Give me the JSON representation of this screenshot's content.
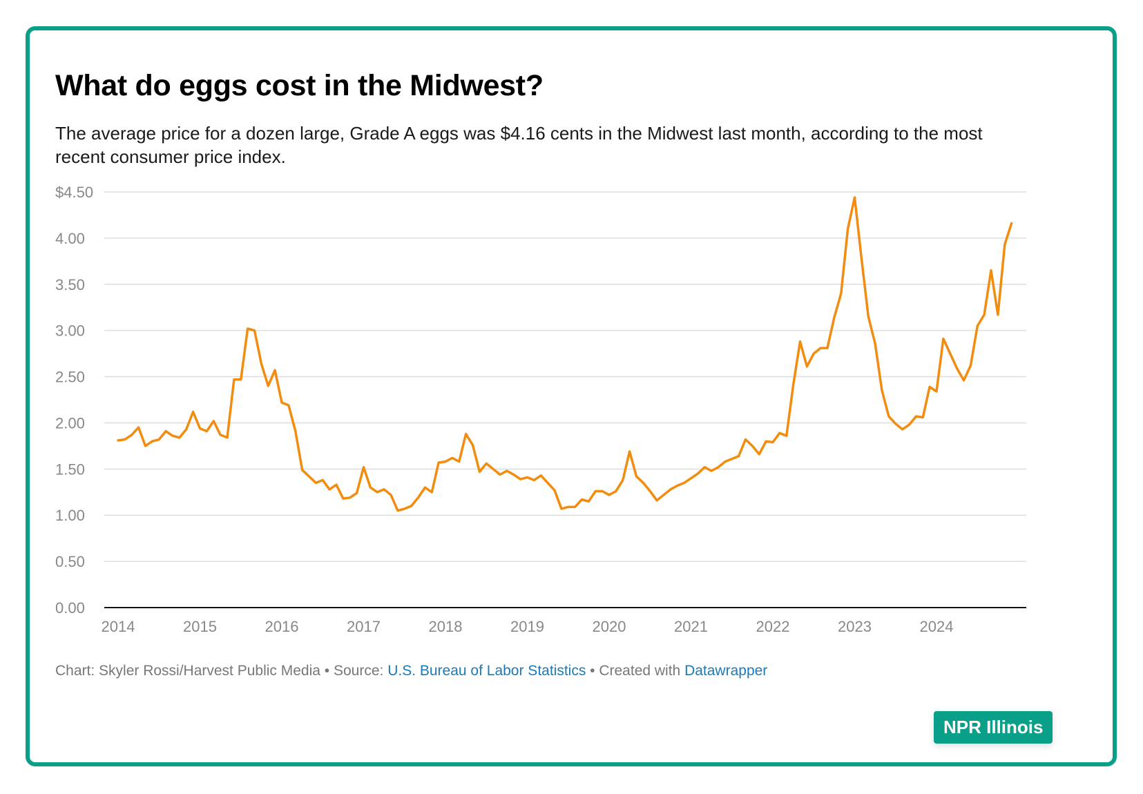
{
  "chart_data": {
    "type": "line",
    "title": "What do eggs cost in the Midwest?",
    "subtitle": "The average price for a dozen large, Grade A eggs was $4.16 cents in the Midwest last month, according to the most recent consumer price index.",
    "x_start": "2014-01",
    "y_ticks": [
      "$4.50",
      "4.00",
      "3.50",
      "3.00",
      "2.50",
      "2.00",
      "1.50",
      "1.00",
      "0.50",
      "0.00"
    ],
    "x_ticks": [
      "2014",
      "2015",
      "2016",
      "2017",
      "2018",
      "2019",
      "2020",
      "2021",
      "2022",
      "2023",
      "2024"
    ],
    "ylim": [
      0,
      4.5
    ],
    "grid": true,
    "series": [
      {
        "color": "#f28c0f",
        "values": [
          1.81,
          1.82,
          1.87,
          1.95,
          1.75,
          1.8,
          1.82,
          1.91,
          1.86,
          1.84,
          1.93,
          2.12,
          1.94,
          1.91,
          2.02,
          1.87,
          1.84,
          2.47,
          2.47,
          3.02,
          3.0,
          2.64,
          2.4,
          2.57,
          2.22,
          2.19,
          1.91,
          1.49,
          1.42,
          1.35,
          1.38,
          1.28,
          1.33,
          1.18,
          1.19,
          1.24,
          1.52,
          1.3,
          1.25,
          1.28,
          1.22,
          1.05,
          1.07,
          1.1,
          1.19,
          1.3,
          1.25,
          1.57,
          1.58,
          1.62,
          1.58,
          1.88,
          1.76,
          1.47,
          1.56,
          1.5,
          1.44,
          1.48,
          1.44,
          1.39,
          1.41,
          1.38,
          1.43,
          1.35,
          1.27,
          1.07,
          1.09,
          1.09,
          1.17,
          1.15,
          1.26,
          1.26,
          1.22,
          1.26,
          1.38,
          1.69,
          1.42,
          1.35,
          1.26,
          1.16,
          1.22,
          1.28,
          1.32,
          1.35,
          1.4,
          1.45,
          1.52,
          1.48,
          1.52,
          1.58,
          1.61,
          1.64,
          1.82,
          1.75,
          1.66,
          1.8,
          1.79,
          1.89,
          1.86,
          2.41,
          2.88,
          2.61,
          2.75,
          2.81,
          2.81,
          3.14,
          3.4,
          4.1,
          4.44,
          3.78,
          3.15,
          2.86,
          2.35,
          2.07,
          1.99,
          1.93,
          1.98,
          2.07,
          2.06,
          2.39,
          2.34,
          2.91,
          2.75,
          2.59,
          2.46,
          2.62,
          3.05,
          3.17,
          3.65,
          3.17,
          3.93,
          4.16
        ]
      }
    ]
  },
  "footer": {
    "chart_credit": "Chart: Skyler Rossi/Harvest Public Media • Source: ",
    "source_link": "U.S. Bureau of Labor Statistics",
    "created_with": " • Created with ",
    "tool_link": "Datawrapper"
  },
  "badge": {
    "label": "NPR Illinois"
  }
}
